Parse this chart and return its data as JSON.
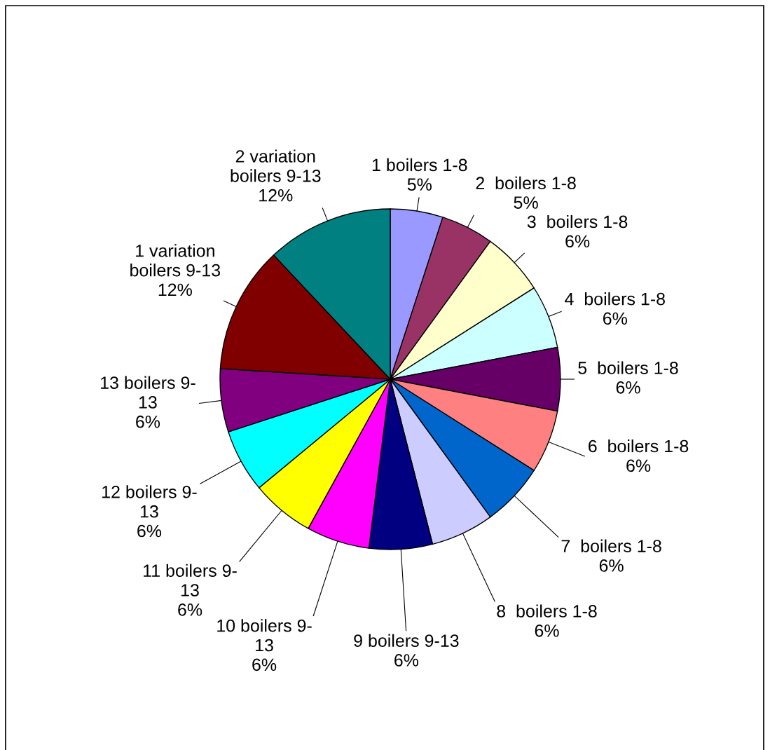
{
  "chart_data": {
    "type": "pie",
    "categories": [
      "1 boilers 1-8",
      "2  boilers 1-8",
      "3  boilers 1-8",
      "4  boilers 1-8",
      "5  boilers 1-8",
      "6  boilers 1-8",
      "7  boilers 1-8",
      "8  boilers 1-8",
      "9 boilers 9-13",
      "10 boilers 9-\n13",
      "11 boilers 9-\n13",
      "12 boilers 9-\n13",
      "13 boilers 9-\n13",
      "1 variation\nboilers 9-13",
      "2 variation\nboilers 9-13"
    ],
    "values": [
      5,
      5,
      6,
      6,
      6,
      6,
      6,
      6,
      6,
      6,
      6,
      6,
      6,
      12,
      12
    ],
    "colors": [
      "#9999ff",
      "#993366",
      "#ffffcc",
      "#ccffff",
      "#660066",
      "#ff8080",
      "#0066cc",
      "#ccccff",
      "#000080",
      "#ff00ff",
      "#ffff00",
      "#00ffff",
      "#800080",
      "#800000",
      "#008080"
    ],
    "value_labels": [
      "5%",
      "5%",
      "6%",
      "6%",
      "6%",
      "6%",
      "6%",
      "6%",
      "6%",
      "6%",
      "6%",
      "6%",
      "6%",
      "12%",
      "12%"
    ],
    "legend": false
  }
}
